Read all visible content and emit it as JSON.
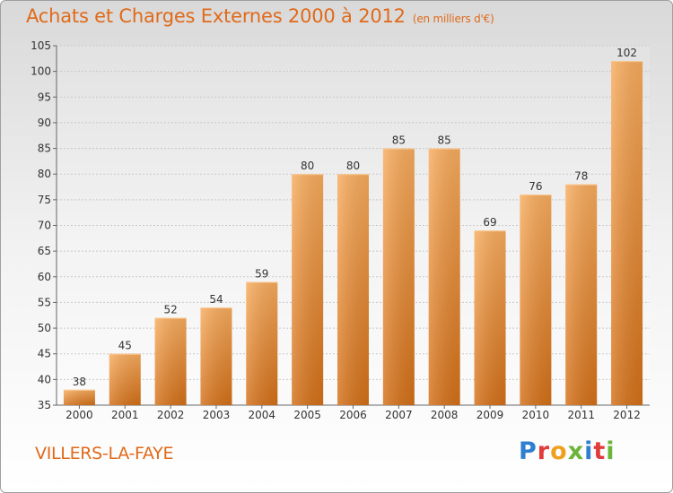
{
  "header": {
    "title": "Achats et Charges Externes 2000 à 2012",
    "subtitle": "(en milliers d'€)"
  },
  "footer": {
    "place": "VILLERS-LA-FAYE",
    "logo_text": "Proxiti"
  },
  "colors": {
    "bar_light": "#f7a95a",
    "bar_dark": "#d8751f",
    "title": "#e06a1a"
  },
  "chart_data": {
    "type": "bar",
    "categories": [
      "2000",
      "2001",
      "2002",
      "2003",
      "2004",
      "2005",
      "2006",
      "2007",
      "2008",
      "2009",
      "2010",
      "2011",
      "2012"
    ],
    "values": [
      38,
      45,
      52,
      54,
      59,
      80,
      80,
      85,
      85,
      69,
      76,
      78,
      102
    ],
    "ylim": [
      35,
      105
    ],
    "yticks": [
      35,
      40,
      45,
      50,
      55,
      60,
      65,
      70,
      75,
      80,
      85,
      90,
      95,
      100,
      105
    ],
    "grid": true,
    "legend": "none",
    "xlabel": "",
    "ylabel": ""
  }
}
